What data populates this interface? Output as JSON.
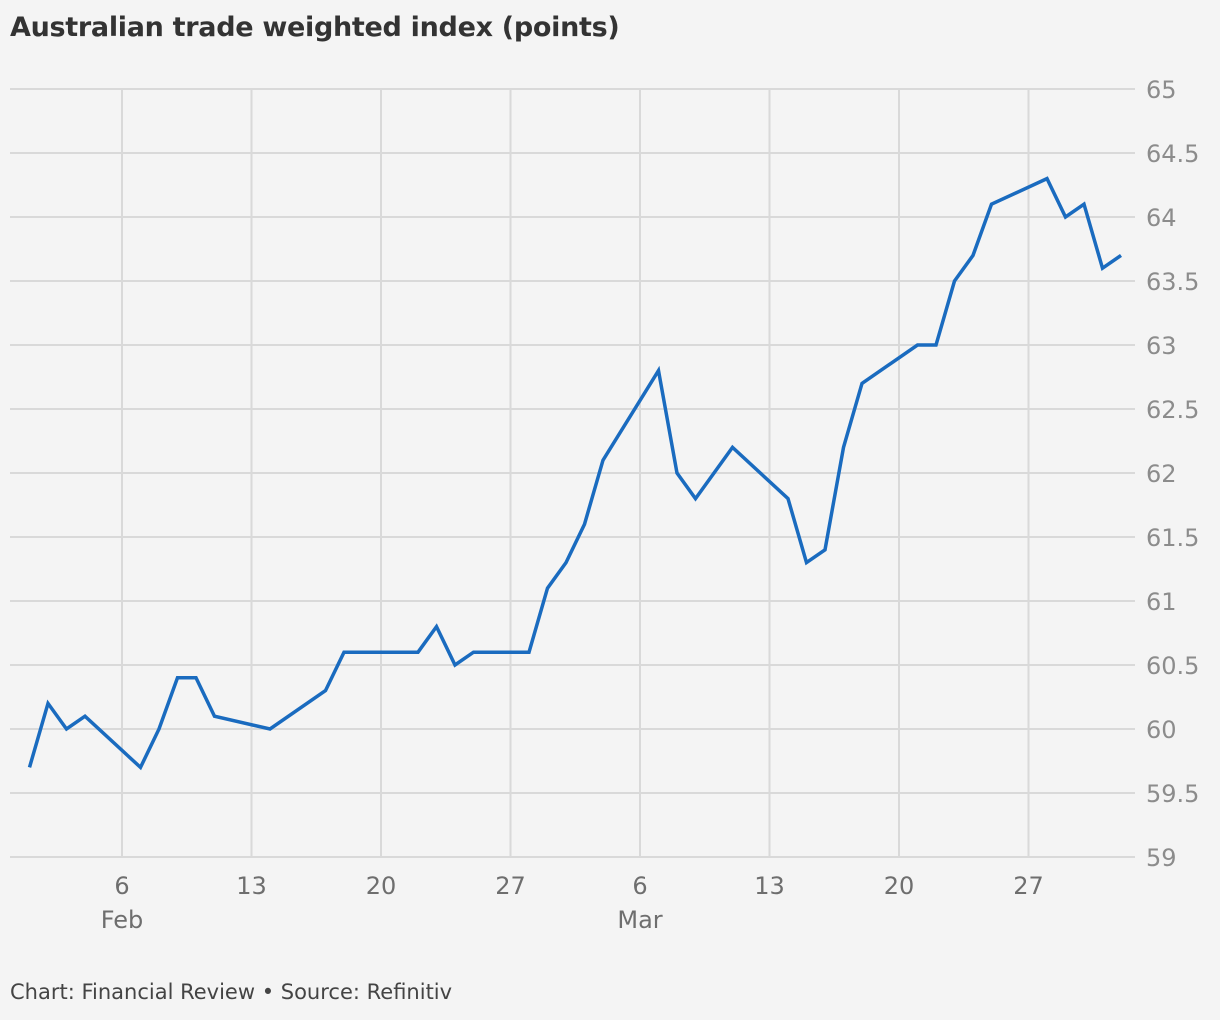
{
  "title": "Australian trade weighted index (points)",
  "footer": "Chart: Financial Review • Source: Refinitiv",
  "colors": {
    "line": "#1a6bbf",
    "grid": "#d9d9d9",
    "background": "#f4f4f4",
    "tick_text": "#8c8c8c",
    "title": "#333333"
  },
  "chart_data": {
    "type": "line",
    "title": "Australian trade weighted index (points)",
    "xlabel": "",
    "ylabel": "",
    "ylim": [
      59,
      65
    ],
    "yticks": [
      "65",
      "64.5",
      "64",
      "63.5",
      "63",
      "62.5",
      "62",
      "61.5",
      "61",
      "60.5",
      "60",
      "59.5",
      "59"
    ],
    "y_axis_position": "right",
    "grid": true,
    "xlim": [
      "2023-01-31",
      "2023-04-01"
    ],
    "xticks": [
      {
        "date": "2023-02-06",
        "day": "6",
        "month": "Feb"
      },
      {
        "date": "2023-02-13",
        "day": "13",
        "month": ""
      },
      {
        "date": "2023-02-20",
        "day": "20",
        "month": ""
      },
      {
        "date": "2023-02-27",
        "day": "27",
        "month": ""
      },
      {
        "date": "2023-03-06",
        "day": "6",
        "month": "Mar"
      },
      {
        "date": "2023-03-13",
        "day": "13",
        "month": ""
      },
      {
        "date": "2023-03-20",
        "day": "20",
        "month": ""
      },
      {
        "date": "2023-03-27",
        "day": "27",
        "month": ""
      }
    ],
    "series": [
      {
        "values": [
          {
            "x": "2023-02-01",
            "y": 59.7
          },
          {
            "x": "2023-02-02",
            "y": 60.2
          },
          {
            "x": "2023-02-03",
            "y": 60.0
          },
          {
            "x": "2023-02-04",
            "y": 60.1
          },
          {
            "x": "2023-02-07",
            "y": 59.7
          },
          {
            "x": "2023-02-08",
            "y": 60.0
          },
          {
            "x": "2023-02-09",
            "y": 60.4
          },
          {
            "x": "2023-02-10",
            "y": 60.4
          },
          {
            "x": "2023-02-11",
            "y": 60.1
          },
          {
            "x": "2023-02-14",
            "y": 60.0
          },
          {
            "x": "2023-02-17",
            "y": 60.3
          },
          {
            "x": "2023-02-18",
            "y": 60.6
          },
          {
            "x": "2023-02-22",
            "y": 60.6
          },
          {
            "x": "2023-02-23",
            "y": 60.8
          },
          {
            "x": "2023-02-24",
            "y": 60.5
          },
          {
            "x": "2023-02-25",
            "y": 60.6
          },
          {
            "x": "2023-02-28",
            "y": 60.6
          },
          {
            "x": "2023-03-01",
            "y": 61.1
          },
          {
            "x": "2023-03-02",
            "y": 61.3
          },
          {
            "x": "2023-03-03",
            "y": 61.6
          },
          {
            "x": "2023-03-04",
            "y": 62.1
          },
          {
            "x": "2023-03-07",
            "y": 62.8
          },
          {
            "x": "2023-03-08",
            "y": 62.0
          },
          {
            "x": "2023-03-09",
            "y": 61.8
          },
          {
            "x": "2023-03-11",
            "y": 62.2
          },
          {
            "x": "2023-03-14",
            "y": 61.8
          },
          {
            "x": "2023-03-15",
            "y": 61.3
          },
          {
            "x": "2023-03-16",
            "y": 61.4
          },
          {
            "x": "2023-03-17",
            "y": 62.2
          },
          {
            "x": "2023-03-18",
            "y": 62.7
          },
          {
            "x": "2023-03-21",
            "y": 63.0
          },
          {
            "x": "2023-03-22",
            "y": 63.0
          },
          {
            "x": "2023-03-23",
            "y": 63.5
          },
          {
            "x": "2023-03-24",
            "y": 63.7
          },
          {
            "x": "2023-03-25",
            "y": 64.1
          },
          {
            "x": "2023-03-28",
            "y": 64.3
          },
          {
            "x": "2023-03-29",
            "y": 64.0
          },
          {
            "x": "2023-03-30",
            "y": 64.1
          },
          {
            "x": "2023-03-31",
            "y": 63.6
          },
          {
            "x": "2023-04-01",
            "y": 63.7
          }
        ]
      }
    ]
  }
}
